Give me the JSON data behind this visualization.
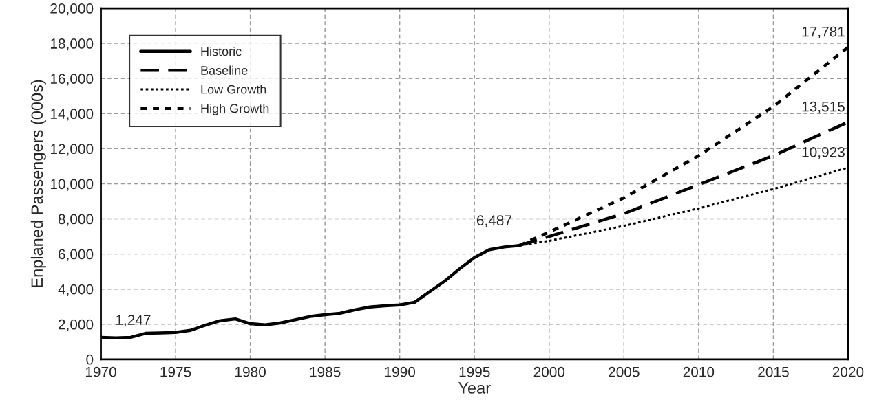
{
  "chart_data": {
    "type": "line",
    "xlabel": "Year",
    "ylabel": "Enplaned Passengers (000s)",
    "series": [
      {
        "name": "Historic",
        "color": "#000000",
        "line_style": "solid",
        "x": [
          1970,
          1971,
          1972,
          1973,
          1974,
          1975,
          1976,
          1977,
          1978,
          1979,
          1980,
          1981,
          1982,
          1983,
          1984,
          1985,
          1986,
          1987,
          1988,
          1989,
          1990,
          1991,
          1992,
          1993,
          1994,
          1995,
          1996,
          1997,
          1998
        ],
        "values": [
          1247,
          1220,
          1250,
          1480,
          1500,
          1530,
          1650,
          1950,
          2200,
          2300,
          2030,
          1960,
          2070,
          2250,
          2440,
          2540,
          2620,
          2820,
          2980,
          3050,
          3100,
          3250,
          3850,
          4450,
          5150,
          5800,
          6250,
          6400,
          6487
        ]
      },
      {
        "name": "Baseline",
        "color": "#000000",
        "line_style": "dashed",
        "x": [
          1998,
          2000,
          2005,
          2010,
          2015,
          2020
        ],
        "values": [
          6487,
          7000,
          8300,
          9950,
          11600,
          13515
        ]
      },
      {
        "name": "Low Growth",
        "color": "#000000",
        "line_style": "dotted",
        "x": [
          1998,
          2000,
          2005,
          2010,
          2015,
          2020
        ],
        "values": [
          6487,
          6750,
          7600,
          8600,
          9700,
          10923
        ]
      },
      {
        "name": "High Growth",
        "color": "#000000",
        "line_style": "dotted",
        "x": [
          1998,
          2000,
          2005,
          2010,
          2015,
          2020
        ],
        "values": [
          6487,
          7250,
          9200,
          11600,
          14400,
          17781
        ]
      }
    ],
    "xlim": [
      1970,
      2020
    ],
    "xticks": [
      1970,
      1975,
      1980,
      1985,
      1990,
      1995,
      2000,
      2005,
      2010,
      2015,
      2020
    ],
    "ylim": [
      0,
      20000
    ],
    "yticks": [
      0,
      {
        "value": 2000,
        "label": "2,000"
      },
      {
        "value": 4000,
        "label": "4,000"
      },
      {
        "value": 6000,
        "label": "6,000"
      },
      {
        "value": 8000,
        "label": "8,000"
      },
      {
        "value": 10000,
        "label": "10,000"
      },
      {
        "value": 12000,
        "label": "12,000"
      },
      {
        "value": 14000,
        "label": "14,000"
      },
      {
        "value": 16000,
        "label": "16,000"
      },
      {
        "value": 18000,
        "label": "18,000"
      },
      {
        "value": 20000,
        "label": "20,000"
      }
    ],
    "grid": true,
    "legend": "top left",
    "annotations": [
      {
        "text": "1,247",
        "x": 1970,
        "y": 1247
      },
      {
        "text": "6,487",
        "x": 1998,
        "y": 6487
      },
      {
        "text": "13,515",
        "x": 2020,
        "y": 13515
      },
      {
        "text": "10,923",
        "x": 2020,
        "y": 10923
      },
      {
        "text": "17,781",
        "x": 2020,
        "y": 17781
      }
    ]
  }
}
